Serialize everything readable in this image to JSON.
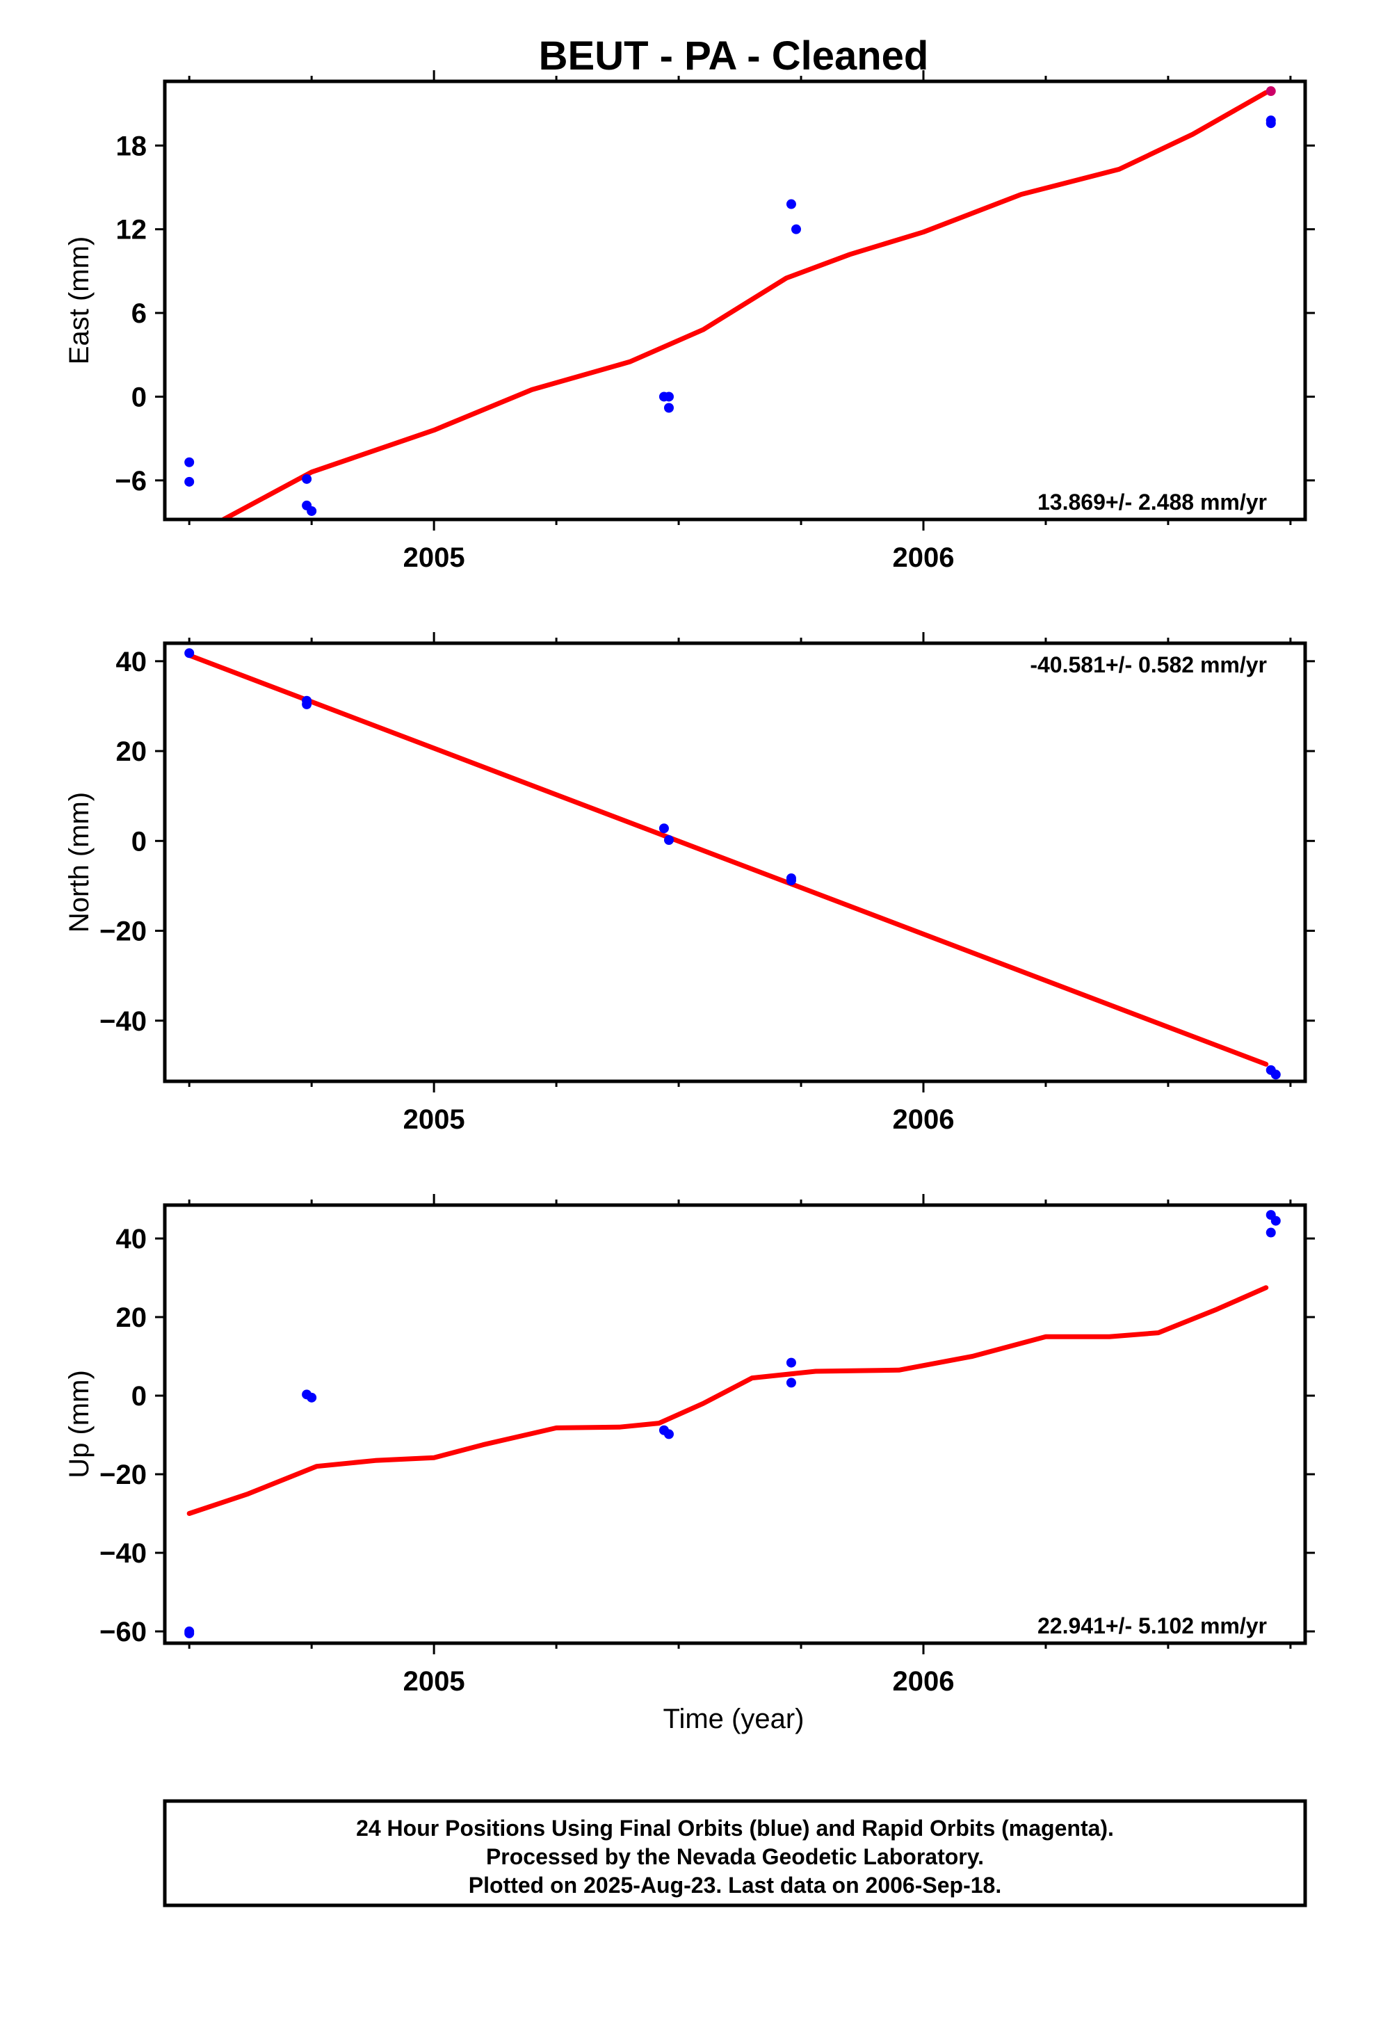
{
  "title": "BEUT  - PA - Cleaned",
  "colors": {
    "final_orbits": "#0000ff",
    "rapid_orbits": "#cc0066",
    "fit": "#ff0000"
  },
  "chart_data": [
    {
      "type": "scatter",
      "ylabel": "East (mm)",
      "xlabel": "",
      "xlim": [
        2004.45,
        2006.78
      ],
      "ylim": [
        -8.8,
        22.6
      ],
      "yticks": [
        -6,
        0,
        6,
        12,
        18
      ],
      "xticks": [
        2005,
        2006
      ],
      "xminor": [
        2004.5,
        2004.75,
        2005.25,
        2005.5,
        2005.75,
        2006.25,
        2006.5,
        2006.75
      ],
      "rate": "13.869+/- 2.488 mm/yr",
      "rate_position": "bottom-right",
      "final_points": [
        [
          2004.5,
          -4.7
        ],
        [
          2004.5,
          -6.1
        ],
        [
          2004.74,
          -5.9
        ],
        [
          2004.74,
          -7.8
        ],
        [
          2004.75,
          -8.2
        ],
        [
          2005.47,
          0.0
        ],
        [
          2005.48,
          0.0
        ],
        [
          2005.48,
          -0.8
        ],
        [
          2005.73,
          13.8
        ],
        [
          2005.74,
          12.0
        ],
        [
          2006.71,
          19.8
        ],
        [
          2006.71,
          19.6
        ]
      ],
      "rapid_points": [
        [
          2006.71,
          21.9
        ]
      ],
      "fit": [
        [
          2004.57,
          -8.8
        ],
        [
          2004.75,
          -5.4
        ],
        [
          2005.0,
          -2.4
        ],
        [
          2005.2,
          0.5
        ],
        [
          2005.4,
          2.5
        ],
        [
          2005.55,
          4.8
        ],
        [
          2005.72,
          8.5
        ],
        [
          2005.85,
          10.2
        ],
        [
          2006.0,
          11.8
        ],
        [
          2006.2,
          14.5
        ],
        [
          2006.4,
          16.3
        ],
        [
          2006.55,
          18.8
        ],
        [
          2006.7,
          21.8
        ]
      ]
    },
    {
      "type": "scatter",
      "ylabel": "North (mm)",
      "xlabel": "",
      "xlim": [
        2004.45,
        2006.78
      ],
      "ylim": [
        -53.5,
        44.0
      ],
      "yticks": [
        -40,
        -20,
        0,
        20,
        40
      ],
      "xticks": [
        2005,
        2006
      ],
      "xminor": [
        2004.5,
        2004.75,
        2005.25,
        2005.5,
        2005.75,
        2006.25,
        2006.5,
        2006.75
      ],
      "rate": "-40.581+/- 0.582 mm/yr",
      "rate_position": "top-right",
      "final_points": [
        [
          2004.5,
          41.8
        ],
        [
          2004.74,
          31.2
        ],
        [
          2004.74,
          30.4
        ],
        [
          2005.47,
          2.8
        ],
        [
          2005.48,
          0.2
        ],
        [
          2005.73,
          -8.3
        ],
        [
          2005.73,
          -8.8
        ],
        [
          2006.71,
          -51.0
        ],
        [
          2006.72,
          -52.0
        ]
      ],
      "rapid_points": [],
      "fit": [
        [
          2004.5,
          41.3
        ],
        [
          2006.7,
          -49.7
        ]
      ]
    },
    {
      "type": "scatter",
      "ylabel": "Up (mm)",
      "xlabel": "Time (year)",
      "xlim": [
        2004.45,
        2006.78
      ],
      "ylim": [
        -63.0,
        48.5
      ],
      "yticks": [
        -60,
        -40,
        -20,
        0,
        20,
        40
      ],
      "xticks": [
        2005,
        2006
      ],
      "xminor": [
        2004.5,
        2004.75,
        2005.25,
        2005.5,
        2005.75,
        2006.25,
        2006.5,
        2006.75
      ],
      "rate": "22.941+/- 5.102 mm/yr",
      "rate_position": "bottom-right",
      "final_points": [
        [
          2004.5,
          -60.5
        ],
        [
          2004.5,
          -60.0
        ],
        [
          2004.74,
          0.3
        ],
        [
          2004.75,
          -0.5
        ],
        [
          2005.47,
          -8.8
        ],
        [
          2005.48,
          -9.8
        ],
        [
          2005.73,
          8.4
        ],
        [
          2005.73,
          3.3
        ],
        [
          2006.71,
          46.0
        ],
        [
          2006.72,
          44.5
        ],
        [
          2006.71,
          41.5
        ]
      ],
      "rapid_points": [],
      "fit": [
        [
          2004.5,
          -30.0
        ],
        [
          2004.62,
          -25.0
        ],
        [
          2004.76,
          -18.0
        ],
        [
          2004.88,
          -16.5
        ],
        [
          2005.0,
          -15.8
        ],
        [
          2005.1,
          -12.5
        ],
        [
          2005.25,
          -8.2
        ],
        [
          2005.38,
          -8.0
        ],
        [
          2005.46,
          -7.0
        ],
        [
          2005.55,
          -2.0
        ],
        [
          2005.65,
          4.5
        ],
        [
          2005.78,
          6.2
        ],
        [
          2005.95,
          6.5
        ],
        [
          2006.1,
          10.0
        ],
        [
          2006.25,
          15.0
        ],
        [
          2006.38,
          15.0
        ],
        [
          2006.48,
          16.0
        ],
        [
          2006.6,
          22.0
        ],
        [
          2006.7,
          27.5
        ]
      ]
    }
  ],
  "footer": {
    "line1": "24 Hour Positions Using Final Orbits (blue) and Rapid Orbits (magenta).",
    "line2": "Processed by the Nevada Geodetic Laboratory.",
    "line3": "Plotted on 2025-Aug-23. Last data on 2006-Sep-18."
  }
}
